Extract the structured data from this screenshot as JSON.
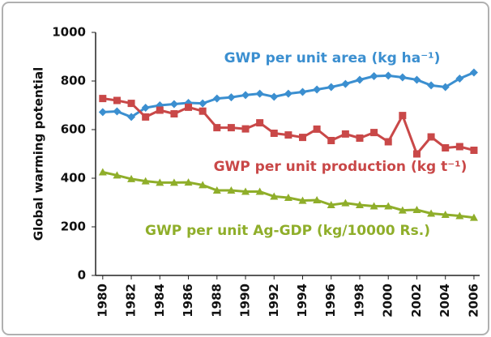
{
  "chart_data": {
    "type": "line",
    "y_label": "Global warming potential",
    "x": [
      1980,
      1981,
      1982,
      1983,
      1984,
      1985,
      1986,
      1987,
      1988,
      1989,
      1990,
      1991,
      1992,
      1993,
      1994,
      1995,
      1996,
      1997,
      1998,
      1999,
      2000,
      2001,
      2002,
      2003,
      2004,
      2005,
      2006
    ],
    "series": [
      {
        "name": "GWP per unit area (kg ha⁻¹)",
        "color": "#3b8fd0",
        "marker": "diamond",
        "values": [
          672,
          675,
          652,
          690,
          700,
          705,
          710,
          708,
          728,
          733,
          742,
          748,
          735,
          748,
          755,
          765,
          775,
          788,
          805,
          820,
          822,
          815,
          805,
          782,
          775,
          810,
          835
        ]
      },
      {
        "name": "GWP per unit production  (kg t⁻¹)",
        "color": "#c94848",
        "marker": "square",
        "values": [
          728,
          720,
          708,
          652,
          680,
          665,
          692,
          676,
          608,
          608,
          603,
          628,
          585,
          578,
          568,
          602,
          555,
          582,
          565,
          588,
          550,
          658,
          500,
          570,
          525,
          530,
          515
        ]
      },
      {
        "name": "GWP per unit Ag-GDP (kg/10000 Rs.)",
        "color": "#8fae2a",
        "marker": "triangle",
        "values": [
          425,
          412,
          397,
          388,
          382,
          382,
          383,
          372,
          350,
          350,
          345,
          345,
          325,
          320,
          308,
          310,
          290,
          298,
          290,
          285,
          285,
          268,
          270,
          255,
          250,
          245,
          238
        ]
      }
    ],
    "xlim": [
      1979.5,
      2006.4
    ],
    "xticks": [
      1980,
      1982,
      1984,
      1986,
      1988,
      1990,
      1992,
      1994,
      1996,
      1998,
      2000,
      2002,
      2004,
      2006
    ],
    "ylim": [
      0,
      1000
    ],
    "yticks": [
      0,
      200,
      400,
      600,
      800,
      1000
    ]
  }
}
